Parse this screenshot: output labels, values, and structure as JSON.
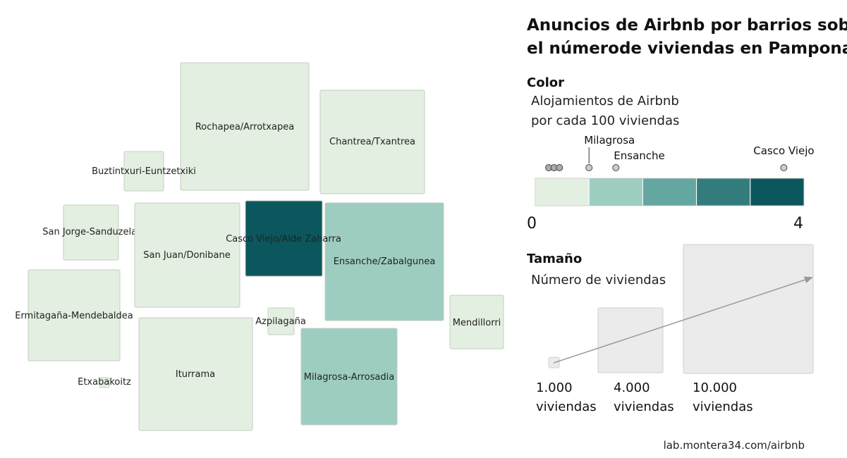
{
  "chart_data": {
    "type": "cartogram",
    "title_lines": [
      "Anuncios de Airbnb por barrios sobre",
      "el númerode viviendas en Pampona"
    ],
    "regions": [
      {
        "name": "Rochapea/Arrotxapea",
        "category": 0
      },
      {
        "name": "Chantrea/Txantrea",
        "category": 0
      },
      {
        "name": "Buztintxuri-Euntzetxiki",
        "category": 0
      },
      {
        "name": "San Jorge-Sanduzelai",
        "category": 0
      },
      {
        "name": "San Juan/Donibane",
        "category": 0
      },
      {
        "name": "Casco Viejo/Alde Zaharra",
        "category": 4
      },
      {
        "name": "Ensanche/Zabalgunea",
        "category": 1
      },
      {
        "name": "Ermitagaña-Mendebaldea",
        "category": 0
      },
      {
        "name": "Azpilagaña",
        "category": 0
      },
      {
        "name": "Mendillorri",
        "category": 0
      },
      {
        "name": "Iturrama",
        "category": 0
      },
      {
        "name": "Milagrosa-Arrosadia",
        "category": 1
      },
      {
        "name": "Etxabakoitz",
        "category": 0
      }
    ],
    "color_legend": {
      "heading": "Color",
      "subtitle_lines": [
        "Alojamientos de Airbnb",
        "por cada 100 viviendas"
      ],
      "colors": [
        "#e3efe0",
        "#9dcdc0",
        "#64a7a0",
        "#337c7e",
        "#0c575d"
      ],
      "min": 0,
      "max": 4,
      "min_label": "0",
      "max_label": "4",
      "points": [
        {
          "value": 0.2,
          "label": ""
        },
        {
          "value": 0.28,
          "label": ""
        },
        {
          "value": 0.36,
          "label": ""
        },
        {
          "value": 0.8,
          "label": "Milagrosa"
        },
        {
          "value": 1.2,
          "label": "Ensanche"
        },
        {
          "value": 3.7,
          "label": "Casco Viejo"
        }
      ]
    },
    "size_legend": {
      "heading": "Tamaño",
      "subtitle": "Número de viviendas",
      "items": [
        {
          "value": 1000,
          "label_lines": [
            "1.000",
            "viviendas"
          ]
        },
        {
          "value": 4000,
          "label_lines": [
            "4.000",
            "viviendas"
          ]
        },
        {
          "value": 10000,
          "label_lines": [
            "10.000",
            "viviendas"
          ]
        }
      ]
    },
    "source": "lab.montera34.com/airbnb"
  }
}
